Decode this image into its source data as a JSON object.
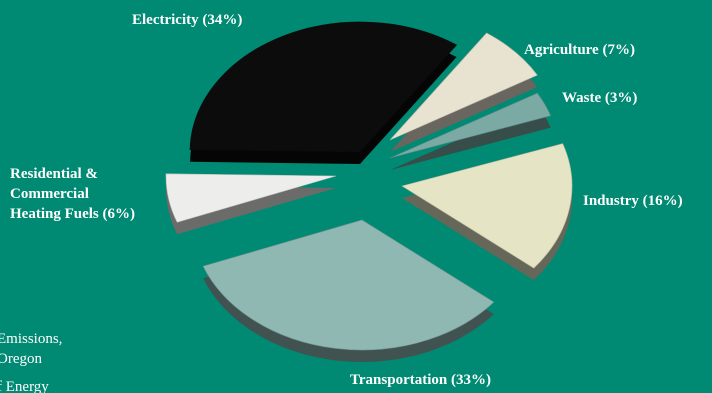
{
  "chart_data": {
    "type": "pie",
    "categories": [
      "Electricity",
      "Agriculture",
      "Waste",
      "Industry",
      "Transportation",
      "Residential & Commercial Heating Fuels"
    ],
    "values": [
      34,
      7,
      3,
      16,
      33,
      6
    ],
    "unit": "%",
    "colors": [
      "#0c0c0c",
      "#e7e3d0",
      "#7aaaa3",
      "#e5e5c6",
      "#8fb8b2",
      "#ededec"
    ],
    "labels": {
      "electricity": "Electricity (34%)",
      "agriculture": "Agriculture (7%)",
      "waste": "Waste (3%)",
      "industry": "Industry (16%)",
      "transportation": "Transportation (33%)",
      "residential_line1": "Residential &",
      "residential_line2": "Commercial",
      "residential_line3": "Heating Fuels (6%)"
    },
    "source_lines": [
      "Emissions,",
      "Oregon",
      "f Energy"
    ]
  },
  "colors": {
    "background": "#008a74",
    "label_text": "#ffffff"
  }
}
